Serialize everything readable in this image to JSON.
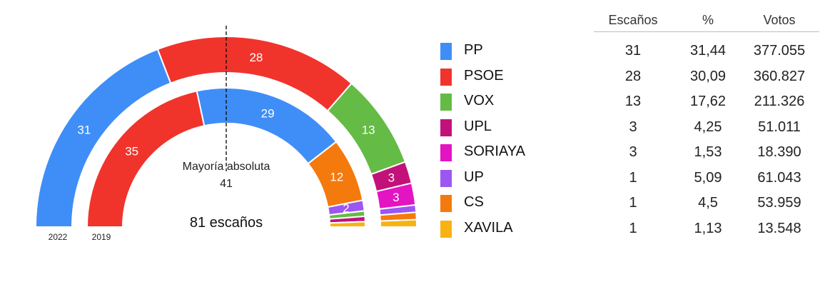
{
  "table": {
    "headers": {
      "seats": "Escaños",
      "pct": "%",
      "votes": "Votos"
    }
  },
  "chart_data": {
    "type": "parliament-arc",
    "total_label": "81 escaños",
    "majority": {
      "label": "Mayoría absoluta",
      "value": "41"
    },
    "parties": [
      {
        "name": "PP",
        "color": "#3f8ef7",
        "seats": "31",
        "pct": "31,44",
        "votes": "377.055"
      },
      {
        "name": "PSOE",
        "color": "#f0342c",
        "seats": "28",
        "pct": "30,09",
        "votes": "360.827"
      },
      {
        "name": "VOX",
        "color": "#64bb45",
        "seats": "13",
        "pct": "17,62",
        "votes": "211.326"
      },
      {
        "name": "UPL",
        "color": "#c2127a",
        "seats": "3",
        "pct": "4,25",
        "votes": "51.011"
      },
      {
        "name": "SORIAYA",
        "color": "#e314c2",
        "seats": "3",
        "pct": "1,53",
        "votes": "18.390"
      },
      {
        "name": "UP",
        "color": "#9c56f2",
        "seats": "1",
        "pct": "5,09",
        "votes": "61.043"
      },
      {
        "name": "CS",
        "color": "#f47a0e",
        "seats": "1",
        "pct": "4,5",
        "votes": "53.959"
      },
      {
        "name": "XAVILA",
        "color": "#f8b212",
        "seats": "1",
        "pct": "1,13",
        "votes": "13.548"
      }
    ],
    "rings": [
      {
        "year": "2022",
        "segments": [
          {
            "party": "PP",
            "seats": 31,
            "label": "31"
          },
          {
            "party": "PSOE",
            "seats": 28,
            "label": "28"
          },
          {
            "party": "VOX",
            "seats": 13,
            "label": "13"
          },
          {
            "party": "UPL",
            "seats": 3,
            "label": "3"
          },
          {
            "party": "SORIAYA",
            "seats": 3,
            "label": "3"
          },
          {
            "party": "UP",
            "seats": 1,
            "label": ""
          },
          {
            "party": "CS",
            "seats": 1,
            "label": ""
          },
          {
            "party": "XAVILA",
            "seats": 1,
            "label": ""
          }
        ]
      },
      {
        "year": "2019",
        "segments": [
          {
            "party": "PSOE",
            "seats": 35,
            "label": "35"
          },
          {
            "party": "PP",
            "seats": 29,
            "label": "29"
          },
          {
            "party": "CS",
            "seats": 12,
            "label": "12"
          },
          {
            "party": "UP",
            "seats": 2,
            "label": "2"
          },
          {
            "party": "VOX",
            "seats": 1,
            "label": ""
          },
          {
            "party": "UPL",
            "seats": 1,
            "label": ""
          },
          {
            "party": "XAVILA",
            "seats": 1,
            "label": ""
          }
        ]
      }
    ]
  }
}
